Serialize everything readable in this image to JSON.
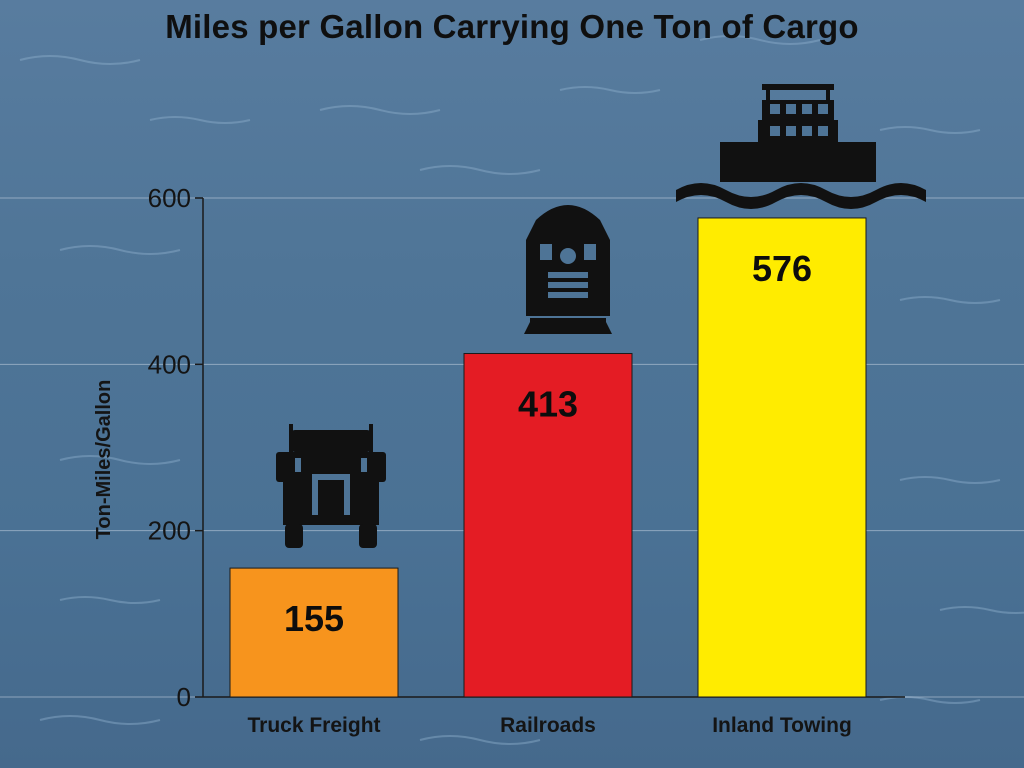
{
  "chart_data": {
    "type": "bar",
    "title": "Miles per Gallon Carrying One Ton of Cargo",
    "ylabel": "Ton-Miles/Gallon",
    "xlabel": "",
    "categories": [
      "Truck Freight",
      "Railroads",
      "Inland Towing"
    ],
    "values": [
      155,
      413,
      576
    ],
    "value_labels": [
      "155",
      "413",
      "576"
    ],
    "colors": [
      "#f7941d",
      "#e41c24",
      "#ffec00"
    ],
    "icons": [
      "truck-icon",
      "locomotive-icon",
      "towboat-icon"
    ],
    "ylim": [
      0,
      600
    ],
    "yticks": [
      0,
      200,
      400,
      600
    ],
    "ytick_labels": [
      "0",
      "200",
      "400",
      "600"
    ],
    "grid": true,
    "legend": "none"
  }
}
